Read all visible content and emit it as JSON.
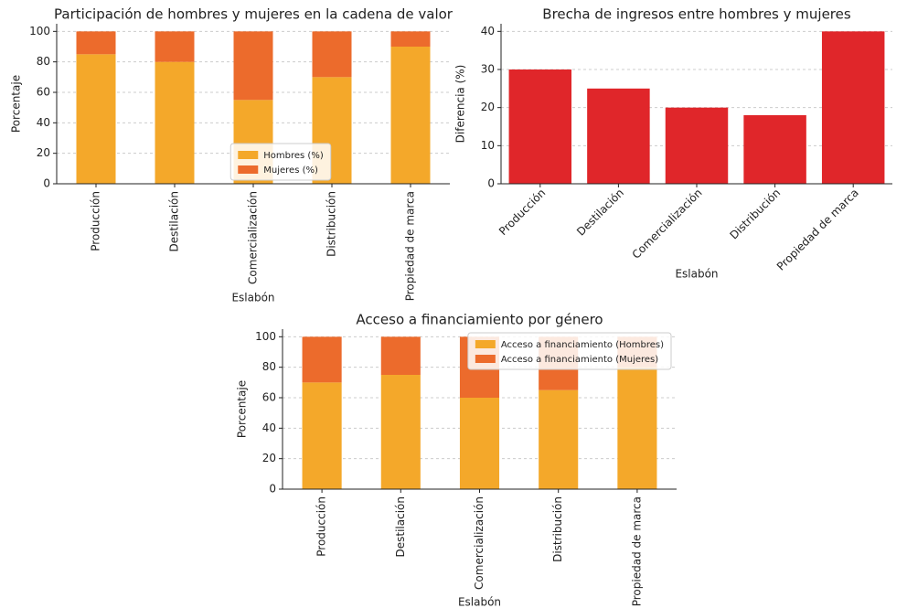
{
  "chart_data": [
    {
      "type": "bar",
      "stacked": true,
      "title": "Participación de hombres y mujeres en la cadena de valor",
      "xlabel": "Eslabón",
      "ylabel": "Porcentaje",
      "categories": [
        "Producción",
        "Destilación",
        "Comercialización",
        "Distribución",
        "Propiedad de marca"
      ],
      "series": [
        {
          "name": "Hombres (%)",
          "color": "#f4a82a",
          "values": [
            85,
            80,
            55,
            70,
            90
          ]
        },
        {
          "name": "Mujeres (%)",
          "color": "#ec6b2c",
          "values": [
            15,
            20,
            45,
            30,
            10
          ]
        }
      ],
      "ylim": [
        0,
        105
      ],
      "yticks": [
        0,
        20,
        40,
        60,
        80,
        100
      ],
      "grid": true,
      "legend": "lower center"
    },
    {
      "type": "bar",
      "title": "Brecha de ingresos entre hombres y mujeres",
      "xlabel": "Eslabón",
      "ylabel": "Diferencia (%)",
      "categories": [
        "Producción",
        "Destilación",
        "Comercialización",
        "Distribución",
        "Propiedad de marca"
      ],
      "values": [
        30,
        25,
        20,
        18,
        40
      ],
      "color": "#e0262a",
      "ylim": [
        0,
        42
      ],
      "yticks": [
        0,
        10,
        20,
        30,
        40
      ],
      "grid": true
    },
    {
      "type": "bar",
      "stacked": true,
      "title": "Acceso a financiamiento por género",
      "xlabel": "Eslabón",
      "ylabel": "Porcentaje",
      "categories": [
        "Producción",
        "Destilación",
        "Comercialización",
        "Distribución",
        "Propiedad de marca"
      ],
      "series": [
        {
          "name": "Acceso a financiamiento (Hombres)",
          "color": "#f4a82a",
          "values": [
            70,
            75,
            60,
            65,
            80
          ]
        },
        {
          "name": "Acceso a financiamiento (Mujeres)",
          "color": "#ec6b2c",
          "values": [
            30,
            25,
            40,
            35,
            20
          ]
        }
      ],
      "ylim": [
        0,
        105
      ],
      "yticks": [
        0,
        20,
        40,
        60,
        80,
        100
      ],
      "grid": true,
      "legend": "upper right"
    }
  ]
}
